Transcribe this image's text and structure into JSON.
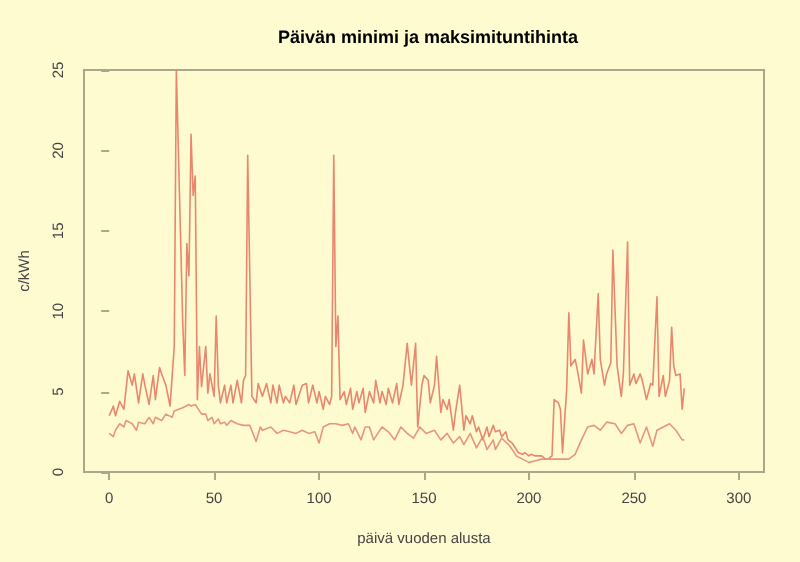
{
  "chart_data": {
    "type": "line",
    "title": "Päivän minimi ja maksimituntihinta",
    "xlabel": "päivä vuoden alusta",
    "ylabel": "c/kWh",
    "xlim": [
      -12,
      312
    ],
    "xticks": [
      0,
      50,
      100,
      150,
      200,
      250,
      300
    ],
    "ylim": [
      0,
      25
    ],
    "yticks": [
      0,
      5,
      10,
      15,
      20,
      25
    ],
    "grid": false,
    "marker": "none",
    "line_style": "solid",
    "series": [
      {
        "color": "#e8876f",
        "x": [
          0,
          2,
          3,
          5,
          7,
          9,
          11,
          12,
          14,
          16,
          17,
          19,
          21,
          22,
          24,
          25,
          27,
          29,
          31,
          32,
          35,
          36,
          37,
          38,
          39,
          40,
          41,
          42,
          43,
          44,
          46,
          47,
          48,
          50,
          51,
          52,
          53,
          55,
          56,
          58,
          59,
          61,
          63,
          64,
          65,
          66,
          68,
          70,
          71,
          73,
          75,
          77,
          78,
          80,
          81,
          83,
          84,
          86,
          88,
          89,
          91,
          92,
          94,
          95,
          97,
          99,
          100,
          102,
          103,
          105,
          106,
          107,
          108,
          109,
          110,
          112,
          113,
          115,
          116,
          118,
          119,
          121,
          122,
          124,
          126,
          127,
          129,
          130,
          132,
          133,
          135,
          137,
          138,
          140,
          142,
          144,
          146,
          147,
          149,
          150,
          152,
          153,
          155,
          156,
          158,
          159,
          161,
          162,
          164,
          165,
          167,
          169,
          170,
          172,
          173,
          175,
          176,
          178,
          180,
          181,
          183,
          184,
          186,
          187,
          189,
          190,
          192,
          194,
          195,
          197,
          198,
          200,
          201,
          203,
          205,
          206,
          208,
          209,
          211,
          212,
          214,
          215,
          216,
          218,
          219,
          220,
          222,
          223,
          225,
          226,
          228,
          230,
          231,
          233,
          234,
          236,
          237,
          239,
          240,
          242,
          244,
          245,
          247,
          248,
          250,
          251,
          253,
          254,
          256,
          258,
          259,
          261,
          262,
          264,
          265,
          267,
          268,
          269,
          270,
          272,
          273,
          274
        ],
        "values": [
          3.5,
          4.1,
          3.5,
          4.4,
          3.9,
          6.3,
          5.4,
          6.1,
          4.3,
          6.1,
          5.4,
          4.2,
          6,
          4.5,
          6.5,
          6.1,
          5.4,
          4.1,
          7.8,
          25,
          9.5,
          6,
          14.2,
          12.2,
          21,
          17.2,
          18.4,
          4.5,
          7.8,
          5.3,
          7.8,
          4.9,
          6.1,
          4.7,
          9.7,
          5.4,
          4.3,
          5.4,
          4.3,
          5.4,
          4.3,
          5.7,
          4.3,
          5.7,
          6,
          19.7,
          4.7,
          4.3,
          5.5,
          4.7,
          5.5,
          4.3,
          5.4,
          4.3,
          5.4,
          4.3,
          4.7,
          4.3,
          5.4,
          4.2,
          5,
          5.4,
          5.5,
          4.3,
          5.4,
          4.3,
          5,
          3.9,
          4.7,
          4.2,
          4.7,
          19.7,
          7.8,
          9.7,
          4.5,
          5,
          4.2,
          5.2,
          3.9,
          5,
          4.3,
          5.2,
          3.7,
          5,
          4.3,
          5.7,
          4.3,
          5,
          4.2,
          5.2,
          4.3,
          5.5,
          4.2,
          5.4,
          8,
          5.4,
          8,
          2.8,
          5.4,
          6,
          5.7,
          4.3,
          5.4,
          7.2,
          3.7,
          4.5,
          3.9,
          4.5,
          2.6,
          3.7,
          5.4,
          2.6,
          3.5,
          3,
          3.5,
          2.5,
          2.8,
          2,
          2.8,
          2.2,
          2.9,
          2.5,
          2.6,
          2.2,
          2.5,
          2,
          1.8,
          1.4,
          1.2,
          1.1,
          1.2,
          1,
          1.1,
          1,
          1,
          1,
          0.8,
          0.8,
          1,
          4.5,
          4.3,
          3.9,
          1.2,
          5.2,
          9.9,
          6.6,
          7,
          6.4,
          4.9,
          8.2,
          6.1,
          7,
          6.1,
          11.1,
          7,
          5.4,
          6.1,
          6.8,
          13.8,
          6.6,
          4.7,
          6.1,
          14.3,
          5.4,
          6.1,
          5.5,
          6.1,
          5.7,
          4.5,
          5.5,
          5.4,
          10.9,
          4.7,
          6,
          4.7,
          5.7,
          9,
          6.6,
          6,
          6.1,
          3.9,
          5.2
        ]
      },
      {
        "color": "#e8957e",
        "x": [
          0,
          2,
          3,
          5,
          7,
          8,
          11,
          13,
          14,
          17,
          19,
          21,
          22,
          25,
          27,
          30,
          31,
          35,
          38,
          39,
          41,
          42,
          44,
          46,
          47,
          49,
          50,
          52,
          53,
          55,
          56,
          58,
          61,
          64,
          67,
          70,
          72,
          73,
          77,
          80,
          83,
          86,
          89,
          92,
          95,
          98,
          100,
          102,
          105,
          108,
          111,
          114,
          116,
          117,
          120,
          122,
          124,
          126,
          128,
          130,
          133,
          136,
          139,
          142,
          145,
          148,
          151,
          155,
          158,
          161,
          164,
          167,
          169,
          172,
          175,
          178,
          180,
          183,
          184,
          187,
          191,
          194,
          197,
          200,
          203,
          206,
          209,
          212,
          215,
          219,
          222,
          225,
          228,
          231,
          234,
          237,
          241,
          244,
          247,
          250,
          253,
          256,
          259,
          261,
          264,
          267,
          270,
          273,
          274
        ],
        "values": [
          2.4,
          2.2,
          2.6,
          3,
          2.8,
          3.2,
          3,
          2.6,
          3.1,
          3,
          3.4,
          3,
          3.4,
          3.2,
          3.6,
          3.4,
          3.8,
          4,
          4.2,
          4.1,
          4.2,
          4,
          3.6,
          3.6,
          3.2,
          3.4,
          3,
          3.3,
          3,
          3.1,
          2.9,
          3.2,
          3,
          2.9,
          2.9,
          1.9,
          2.8,
          2.6,
          2.8,
          2.4,
          2.6,
          2.5,
          2.4,
          2.6,
          2.4,
          2.5,
          1.8,
          2.8,
          3,
          3,
          2.9,
          3,
          2.4,
          2.8,
          2,
          2.8,
          2.8,
          2,
          2.4,
          2.8,
          2.5,
          2,
          2.8,
          2.4,
          2.1,
          2.8,
          2.4,
          2.6,
          2,
          2.4,
          1.8,
          2.2,
          1.7,
          2.4,
          1.5,
          2.2,
          1.4,
          2,
          1.4,
          2.1,
          1.6,
          1,
          0.8,
          0.6,
          0.7,
          0.8,
          0.8,
          0.8,
          0.8,
          0.8,
          1.1,
          2,
          2.8,
          2.9,
          2.6,
          3.1,
          3,
          2.4,
          2.9,
          3,
          1.8,
          2.8,
          1.6,
          2.6,
          2.8,
          3,
          2.6,
          2,
          2
        ]
      }
    ]
  }
}
